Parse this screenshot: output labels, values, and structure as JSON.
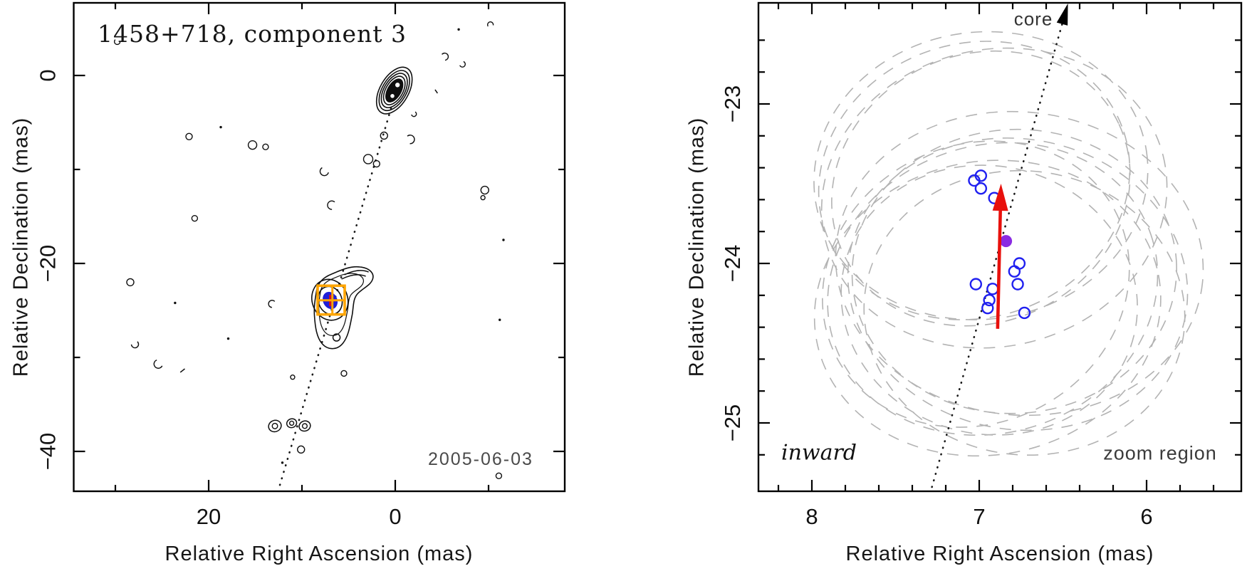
{
  "figure": {
    "background": "#ffffff",
    "colors": {
      "contour": "#0f0f0f",
      "axis": "#000000",
      "epoch_circle": "#2020f0",
      "mean_dot": "#8a2be2",
      "arrow_red": "#e8100c",
      "beam_ellipse_gray": "#b3b3b3",
      "zoom_box_orange": "#ffa500",
      "dotted_line": "#1a1a1a",
      "gray_text": "#4a4a4a"
    }
  },
  "chart_data": [
    {
      "id": "contour-panel",
      "type": "contour-map",
      "title": "1458+718, component 3",
      "date_label": "2005-06-03",
      "xlabel": "Relative Right Ascension (mas)",
      "ylabel": "Relative Declination (mas)",
      "xlim": [
        34.5,
        -18.2
      ],
      "ylim": [
        -44.2,
        7.7
      ],
      "x_axis_reversed": true,
      "xticks_major": [
        20,
        0
      ],
      "xticks_minor": [
        30,
        10,
        -10
      ],
      "yticks_major": [
        0,
        -20,
        -40
      ],
      "yticks_minor": [
        -10,
        -30
      ],
      "core": {
        "ra": 0.1,
        "dec": -1.6
      },
      "component3": {
        "ra": 6.98,
        "dec": -23.94,
        "marker": "blue-ellipse-red-cross"
      },
      "zoom_box": {
        "ra_range": [
          8.32,
          5.42
        ],
        "dec_range": [
          -22.37,
          -25.43
        ],
        "crosshair": {
          "ra": 6.74,
          "dec": -23.92
        }
      },
      "jet_line": {
        "style": "dotted",
        "from": {
          "ra": 0.45,
          "dec": -3.5
        },
        "to": {
          "ra": 12.55,
          "dec": -44.2
        }
      },
      "jet_knots": [
        {
          "ra": 12.9,
          "dec": -37.3,
          "r": 9
        },
        {
          "ra": 11.1,
          "dec": -37.0,
          "r": 7
        },
        {
          "ra": 9.7,
          "dec": -37.3,
          "r": 8
        }
      ],
      "noise_features": [
        {
          "ra": 29.8,
          "dec": 3.6,
          "kind": "arc",
          "r": 4
        },
        {
          "ra": -6.8,
          "dec": 4.9,
          "kind": "dot",
          "r": 2
        },
        {
          "ra": -10.2,
          "dec": 5.4,
          "kind": "arc",
          "r": 4
        },
        {
          "ra": -5.3,
          "dec": 2.0,
          "kind": "arc",
          "r": 5
        },
        {
          "ra": -7.2,
          "dec": 1.2,
          "kind": "arc",
          "r": 4
        },
        {
          "ra": -4.4,
          "dec": -1.7,
          "kind": "dash",
          "r": 3
        },
        {
          "ra": 18.7,
          "dec": -5.5,
          "kind": "dot",
          "r": 2
        },
        {
          "ra": 22.1,
          "dec": -6.5,
          "kind": "o",
          "r": 4.5
        },
        {
          "ra": 15.3,
          "dec": -7.4,
          "kind": "o",
          "r": 6
        },
        {
          "ra": 13.9,
          "dec": -7.6,
          "kind": "o",
          "r": 4
        },
        {
          "ra": 1.2,
          "dec": -6.4,
          "kind": "o",
          "r": 5
        },
        {
          "ra": 2.9,
          "dec": -8.9,
          "kind": "o",
          "r": 6.5
        },
        {
          "ra": 2.0,
          "dec": -9.4,
          "kind": "o",
          "r": 4.5
        },
        {
          "ra": -1.6,
          "dec": -6.8,
          "kind": "arc",
          "r": 6
        },
        {
          "ra": -2.0,
          "dec": -4.1,
          "kind": "arc",
          "r": 3.5
        },
        {
          "ra": 7.6,
          "dec": -10.2,
          "kind": "arc",
          "r": 6
        },
        {
          "ra": 6.8,
          "dec": -13.8,
          "kind": "arc",
          "r": 6
        },
        {
          "ra": 21.5,
          "dec": -15.2,
          "kind": "o",
          "r": 4
        },
        {
          "ra": -9.6,
          "dec": -12.2,
          "kind": "o",
          "r": 5.5
        },
        {
          "ra": -9.4,
          "dec": -13.0,
          "kind": "o",
          "r": 3
        },
        {
          "ra": 28.4,
          "dec": -22.0,
          "kind": "o",
          "r": 5
        },
        {
          "ra": 13.2,
          "dec": -24.3,
          "kind": "arc",
          "r": 5
        },
        {
          "ra": 23.6,
          "dec": -24.2,
          "kind": "dot",
          "r": 2
        },
        {
          "ra": 17.9,
          "dec": -28.0,
          "kind": "dot",
          "r": 2
        },
        {
          "ra": 27.9,
          "dec": -28.6,
          "kind": "arc",
          "r": 5
        },
        {
          "ra": 25.4,
          "dec": -30.7,
          "kind": "arc",
          "r": 6
        },
        {
          "ra": 22.8,
          "dec": -31.4,
          "kind": "dash",
          "r": 4
        },
        {
          "ra": 5.5,
          "dec": -31.7,
          "kind": "o",
          "r": 4
        },
        {
          "ra": 11.0,
          "dec": -32.1,
          "kind": "o",
          "r": 3
        },
        {
          "ra": -11.6,
          "dec": -17.5,
          "kind": "dot",
          "r": 2
        },
        {
          "ra": -11.2,
          "dec": -26.0,
          "kind": "dot",
          "r": 2
        },
        {
          "ra": -11.1,
          "dec": -42.6,
          "kind": "o",
          "r": 4
        },
        {
          "ra": 10.1,
          "dec": -39.8,
          "kind": "o",
          "r": 5
        },
        {
          "ra": 12.1,
          "dec": -41.2,
          "kind": "dot",
          "r": 2
        }
      ]
    },
    {
      "id": "zoom-panel",
      "type": "scatter",
      "xlabel": "Relative Right Ascension (mas)",
      "ylabel": "Relative Declination (mas)",
      "xlim": [
        8.32,
        5.42
      ],
      "ylim": [
        -25.43,
        -22.37
      ],
      "x_axis_reversed": true,
      "xticks_major": [
        8,
        7,
        6
      ],
      "xticks_minor": [
        8.2,
        7.8,
        7.6,
        7.4,
        7.2,
        6.8,
        6.6,
        6.4,
        6.2,
        5.8,
        5.6
      ],
      "yticks_major": [
        -23,
        -24,
        -25
      ],
      "yticks_minor": [
        -22.6,
        -22.8,
        -23.2,
        -23.4,
        -23.6,
        -23.8,
        -24.2,
        -24.4,
        -24.6,
        -24.8,
        -25.2
      ],
      "epoch_positions": [
        {
          "ra": 7.03,
          "dec": -23.48
        },
        {
          "ra": 6.99,
          "dec": -23.45
        },
        {
          "ra": 6.99,
          "dec": -23.53
        },
        {
          "ra": 6.91,
          "dec": -23.59
        },
        {
          "ra": 6.76,
          "dec": -24.0
        },
        {
          "ra": 6.79,
          "dec": -24.05
        },
        {
          "ra": 6.77,
          "dec": -24.13
        },
        {
          "ra": 7.02,
          "dec": -24.13
        },
        {
          "ra": 6.92,
          "dec": -24.16
        },
        {
          "ra": 6.94,
          "dec": -24.23
        },
        {
          "ra": 6.95,
          "dec": -24.28
        },
        {
          "ra": 6.73,
          "dec": -24.31
        }
      ],
      "mean_position": {
        "ra": 6.84,
        "dec": -23.86
      },
      "motion_arrow": {
        "from": {
          "ra": 6.89,
          "dec": -24.41
        },
        "to": {
          "ra": 6.87,
          "dec": -23.5
        }
      },
      "core_direction_line": {
        "style": "dotted",
        "from": {
          "ra": 6.47,
          "dec": -22.37
        },
        "to": {
          "ra": 7.29,
          "dec": -25.43
        }
      },
      "beam_ellipses": [
        {
          "ra": 7.03,
          "dec": -23.48,
          "rx": 0.94,
          "ry": 0.86,
          "rot": -18
        },
        {
          "ra": 6.99,
          "dec": -23.45,
          "rx": 1.0,
          "ry": 0.9,
          "rot": -8
        },
        {
          "ra": 6.99,
          "dec": -23.53,
          "rx": 0.91,
          "ry": 0.84,
          "rot": -25
        },
        {
          "ra": 6.91,
          "dec": -23.59,
          "rx": 1.04,
          "ry": 0.93,
          "rot": -14
        },
        {
          "ra": 6.76,
          "dec": -24.0,
          "rx": 1.1,
          "ry": 0.95,
          "rot": 6
        },
        {
          "ra": 6.79,
          "dec": -24.05,
          "rx": 0.97,
          "ry": 0.89,
          "rot": -4
        },
        {
          "ra": 6.77,
          "dec": -24.13,
          "rx": 1.02,
          "ry": 0.91,
          "rot": 11
        },
        {
          "ra": 7.02,
          "dec": -24.13,
          "rx": 0.94,
          "ry": 0.87,
          "rot": -28
        },
        {
          "ra": 6.92,
          "dec": -24.16,
          "rx": 1.0,
          "ry": 0.9,
          "rot": -19
        },
        {
          "ra": 6.94,
          "dec": -24.23,
          "rx": 0.89,
          "ry": 0.84,
          "rot": 14
        },
        {
          "ra": 6.95,
          "dec": -24.28,
          "rx": 1.04,
          "ry": 0.92,
          "rot": -11
        },
        {
          "ra": 6.73,
          "dec": -24.31,
          "rx": 0.96,
          "ry": 0.89,
          "rot": 7
        }
      ],
      "annotations": [
        {
          "text": "core",
          "ra": 6.68,
          "dec": -22.47
        },
        {
          "text": "inward",
          "ra": 7.96,
          "dec": -25.18
        },
        {
          "text": "zoom region",
          "ra": 5.92,
          "dec": -25.19
        }
      ]
    }
  ]
}
